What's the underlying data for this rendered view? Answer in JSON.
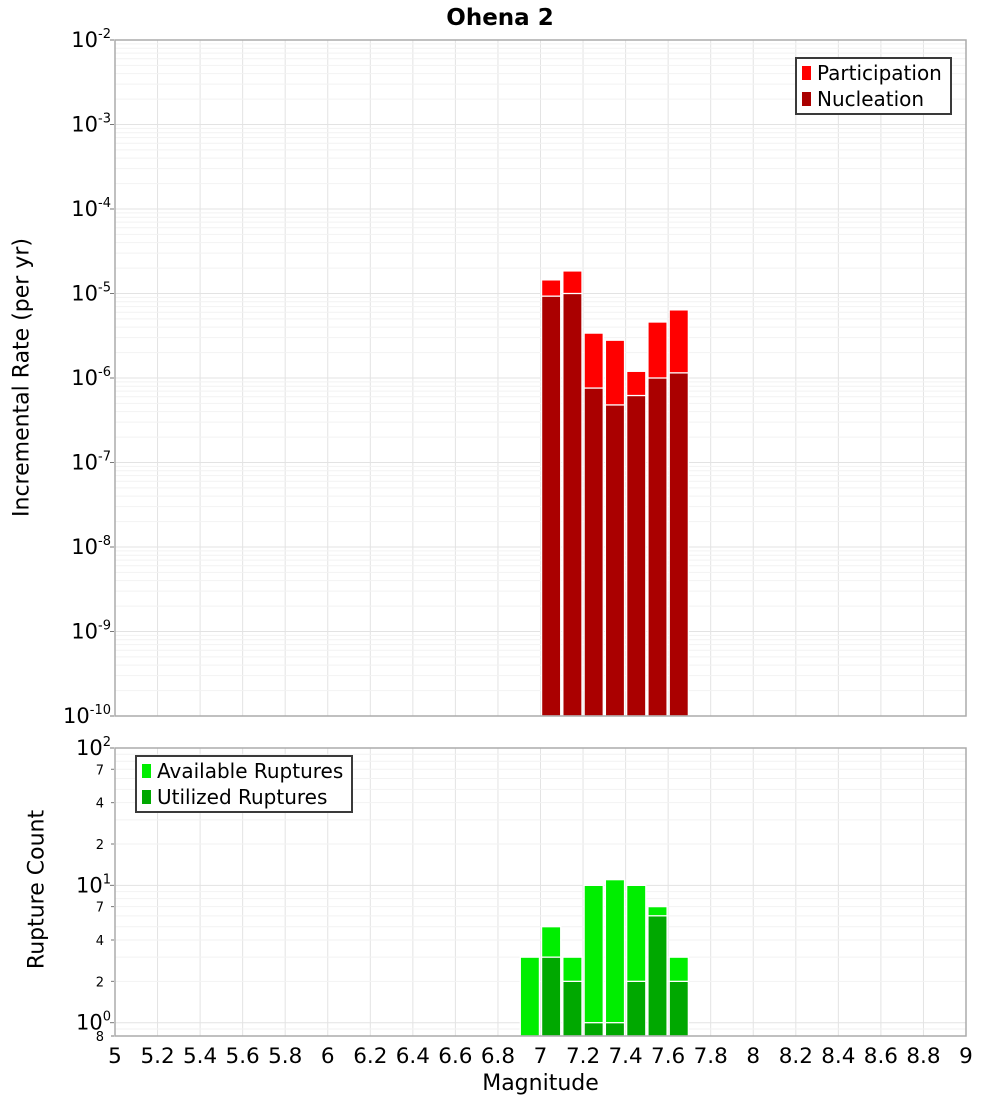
{
  "figure": {
    "title": "Ohena 2",
    "xlabel": "Magnitude",
    "background": "#ffffff"
  },
  "chart_data": [
    {
      "type": "bar",
      "title": "Ohena 2",
      "ylabel": "Incremental Rate (per yr)",
      "yscale": "log",
      "xlim": [
        5,
        9
      ],
      "ylim": [
        1e-10,
        0.01
      ],
      "grid": true,
      "legend_position": "top-right",
      "bar_width_mag": 0.09,
      "xtick_values": [
        5,
        5.2,
        5.4,
        5.6,
        5.8,
        6,
        6.2,
        6.4,
        6.6,
        6.8,
        7,
        7.2,
        7.4,
        7.6,
        7.8,
        8,
        8.2,
        8.4,
        8.6,
        8.8,
        9
      ],
      "xtick_labels": [
        "5",
        "5.2",
        "5.4",
        "5.6",
        "5.8",
        "6",
        "6.2",
        "6.4",
        "6.6",
        "6.8",
        "7",
        "7.2",
        "7.4",
        "7.6",
        "7.8",
        "8",
        "8.2",
        "8.4",
        "8.6",
        "8.8",
        "9"
      ],
      "ytick_exponents": [
        -2,
        -3,
        -4,
        -5,
        -6,
        -7,
        -8,
        -9,
        -10
      ],
      "x": [
        7.05,
        7.15,
        7.25,
        7.35,
        7.45,
        7.55,
        7.65
      ],
      "series": [
        {
          "name": "Participation",
          "color": "#FF0000",
          "values": [
            1.45e-05,
            1.85e-05,
            3.4e-06,
            2.8e-06,
            1.2e-06,
            4.6e-06,
            6.4e-06
          ]
        },
        {
          "name": "Nucleation",
          "color": "#AA0000",
          "values": [
            9.3e-06,
            1e-05,
            7.6e-07,
            4.8e-07,
            6.2e-07,
            1e-06,
            1.15e-06
          ]
        }
      ]
    },
    {
      "type": "bar",
      "xlabel": "Magnitude",
      "ylabel": "Rupture Count",
      "yscale": "log",
      "xlim": [
        5,
        9
      ],
      "ylim": [
        0.8,
        100
      ],
      "grid": true,
      "legend_position": "top-left",
      "bar_width_mag": 0.09,
      "xtick_values": [
        5,
        5.2,
        5.4,
        5.6,
        5.8,
        6,
        6.2,
        6.4,
        6.6,
        6.8,
        7,
        7.2,
        7.4,
        7.6,
        7.8,
        8,
        8.2,
        8.4,
        8.6,
        8.8,
        9
      ],
      "xtick_labels": [
        "5",
        "5.2",
        "5.4",
        "5.6",
        "5.8",
        "6",
        "6.2",
        "6.4",
        "6.6",
        "6.8",
        "7",
        "7.2",
        "7.4",
        "7.6",
        "7.8",
        "8",
        "8.2",
        "8.4",
        "8.6",
        "8.8",
        "9"
      ],
      "ytick_exponents": [
        2,
        1,
        0
      ],
      "ytick_minor_labels": [
        {
          "value": 70,
          "label": "7"
        },
        {
          "value": 40,
          "label": "4"
        },
        {
          "value": 20,
          "label": "2"
        },
        {
          "value": 7,
          "label": "7"
        },
        {
          "value": 4,
          "label": "4"
        },
        {
          "value": 2,
          "label": "2"
        },
        {
          "value": 0.8,
          "label": "8"
        }
      ],
      "x": [
        6.95,
        7.05,
        7.15,
        7.25,
        7.35,
        7.45,
        7.55,
        7.65
      ],
      "series": [
        {
          "name": "Available Ruptures",
          "color": "#00EE00",
          "values": [
            3,
            5,
            3,
            10,
            11,
            10,
            7,
            3
          ]
        },
        {
          "name": "Utilized Ruptures",
          "color": "#00A800",
          "values": [
            0,
            3,
            2,
            1,
            1,
            2,
            6,
            2
          ]
        }
      ]
    }
  ]
}
